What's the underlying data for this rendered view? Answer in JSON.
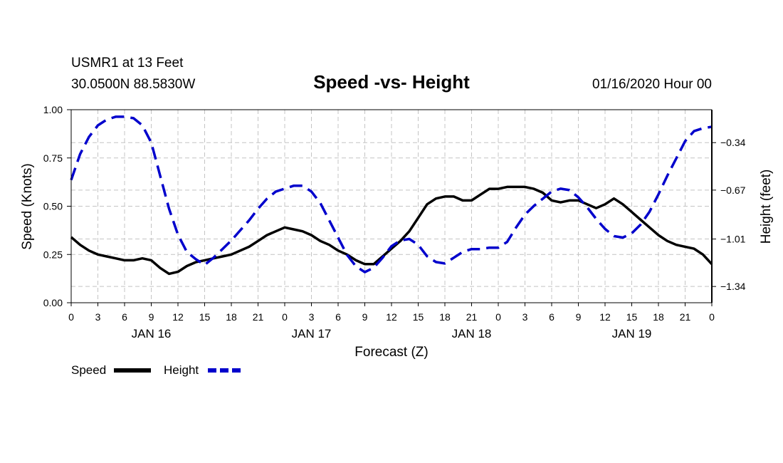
{
  "header": {
    "station_line": "USMR1 at 13 Feet",
    "coords_line": "30.0500N 88.5830W",
    "title": "Speed -vs- Height",
    "datetime": "01/16/2020 Hour 00"
  },
  "chart_data": {
    "type": "line",
    "title": "Speed -vs- Height",
    "xlabel": "Forecast (Z)",
    "ylabel_left": "Speed (Knots)",
    "ylabel_right": "Height (feet)",
    "xlim": [
      0,
      72
    ],
    "ylim_left": [
      0,
      1
    ],
    "ylim_right": [
      -1.453,
      -0.111
    ],
    "x_ticks": [
      0,
      3,
      6,
      9,
      12,
      15,
      18,
      21,
      24,
      27,
      30,
      33,
      36,
      39,
      42,
      45,
      48,
      51,
      54,
      57,
      60,
      63,
      66,
      69,
      72
    ],
    "x_tick_labels": [
      "0",
      "3",
      "6",
      "9",
      "12",
      "15",
      "18",
      "21",
      "0",
      "3",
      "6",
      "9",
      "12",
      "15",
      "18",
      "21",
      "0",
      "3",
      "6",
      "9",
      "12",
      "15",
      "18",
      "21",
      "0"
    ],
    "day_labels": [
      {
        "x": 9,
        "label": "JAN 16"
      },
      {
        "x": 27,
        "label": "JAN 17"
      },
      {
        "x": 45,
        "label": "JAN 18"
      },
      {
        "x": 63,
        "label": "JAN 19"
      }
    ],
    "left_ticks": [
      0.0,
      0.25,
      0.5,
      0.75,
      1.0
    ],
    "left_tick_labels": [
      "0.00",
      "0.25",
      "0.50",
      "0.75",
      "1.00"
    ],
    "right_ticks": [
      -0.34,
      -0.67,
      -1.01,
      -1.34
    ],
    "right_tick_labels": [
      "-0.34",
      "-0.67",
      "-1.01",
      "-1.34"
    ],
    "grid": true,
    "legend": [
      {
        "name": "Speed",
        "color": "#000000",
        "dashed": false
      },
      {
        "name": "Height",
        "color": "#0000cc",
        "dashed": true
      }
    ],
    "series": [
      {
        "name": "Speed",
        "axis": "left",
        "color": "#000000",
        "dashed": false,
        "x": [
          0,
          1,
          2,
          3,
          4,
          5,
          6,
          7,
          8,
          9,
          10,
          11,
          12,
          13,
          14,
          15,
          16,
          17,
          18,
          19,
          20,
          21,
          22,
          23,
          24,
          25,
          26,
          27,
          28,
          29,
          30,
          31,
          32,
          33,
          34,
          35,
          36,
          37,
          38,
          39,
          40,
          41,
          42,
          43,
          44,
          45,
          46,
          47,
          48,
          49,
          50,
          51,
          52,
          53,
          54,
          55,
          56,
          57,
          58,
          59,
          60,
          61,
          62,
          63,
          64,
          65,
          66,
          67,
          68,
          69,
          70,
          71,
          72
        ],
        "values": [
          0.34,
          0.3,
          0.27,
          0.25,
          0.24,
          0.23,
          0.22,
          0.22,
          0.23,
          0.22,
          0.18,
          0.15,
          0.16,
          0.19,
          0.21,
          0.22,
          0.23,
          0.24,
          0.25,
          0.27,
          0.29,
          0.32,
          0.35,
          0.37,
          0.39,
          0.38,
          0.37,
          0.35,
          0.32,
          0.3,
          0.27,
          0.25,
          0.22,
          0.2,
          0.2,
          0.24,
          0.28,
          0.32,
          0.37,
          0.44,
          0.51,
          0.54,
          0.55,
          0.55,
          0.53,
          0.53,
          0.56,
          0.59,
          0.59,
          0.6,
          0.6,
          0.6,
          0.59,
          0.57,
          0.53,
          0.52,
          0.53,
          0.53,
          0.51,
          0.49,
          0.51,
          0.54,
          0.51,
          0.47,
          0.43,
          0.39,
          0.35,
          0.32,
          0.3,
          0.29,
          0.28,
          0.25,
          0.2
        ]
      },
      {
        "name": "Height",
        "axis": "right",
        "color": "#0000cc",
        "dashed": true,
        "x": [
          0,
          1,
          2,
          3,
          4,
          5,
          6,
          7,
          8,
          9,
          10,
          11,
          12,
          13,
          14,
          15,
          16,
          17,
          18,
          19,
          20,
          21,
          22,
          23,
          24,
          25,
          26,
          27,
          28,
          29,
          30,
          31,
          32,
          33,
          34,
          35,
          36,
          37,
          38,
          39,
          40,
          41,
          42,
          43,
          44,
          45,
          46,
          47,
          48,
          49,
          50,
          51,
          52,
          53,
          54,
          55,
          56,
          57,
          58,
          59,
          60,
          61,
          62,
          63,
          64,
          65,
          66,
          67,
          68,
          69,
          70,
          71,
          72
        ],
        "values": [
          -0.6,
          -0.42,
          -0.3,
          -0.22,
          -0.18,
          -0.16,
          -0.16,
          -0.17,
          -0.22,
          -0.34,
          -0.57,
          -0.8,
          -0.98,
          -1.1,
          -1.15,
          -1.19,
          -1.14,
          -1.08,
          -1.02,
          -0.95,
          -0.88,
          -0.8,
          -0.73,
          -0.68,
          -0.66,
          -0.64,
          -0.64,
          -0.68,
          -0.76,
          -0.88,
          -1.0,
          -1.12,
          -1.2,
          -1.24,
          -1.21,
          -1.14,
          -1.06,
          -1.02,
          -1.01,
          -1.05,
          -1.13,
          -1.17,
          -1.18,
          -1.14,
          -1.1,
          -1.08,
          -1.08,
          -1.07,
          -1.07,
          -1.03,
          -0.93,
          -0.84,
          -0.78,
          -0.73,
          -0.68,
          -0.66,
          -0.67,
          -0.72,
          -0.79,
          -0.87,
          -0.94,
          -0.99,
          -1.0,
          -0.97,
          -0.91,
          -0.82,
          -0.7,
          -0.57,
          -0.45,
          -0.33,
          -0.26,
          -0.24,
          -0.23
        ]
      }
    ]
  }
}
